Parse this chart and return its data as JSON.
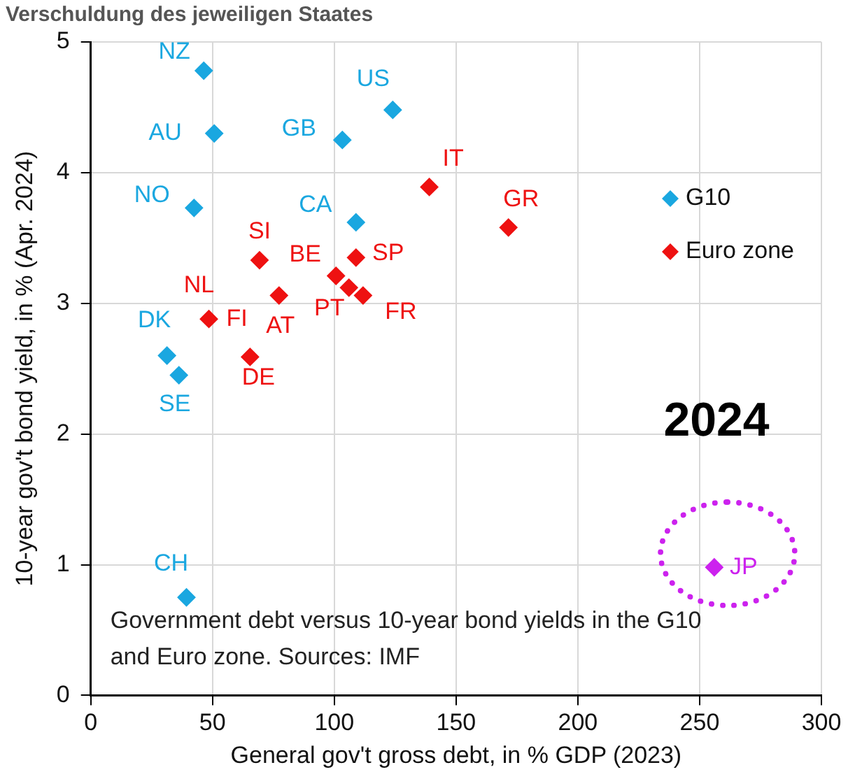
{
  "chart_data": {
    "type": "scatter",
    "title": "Verschuldung des jeweiligen Staates",
    "xlabel": "General gov't gross debt, in % GDP (2023)",
    "ylabel": "10-year gov't bond yield, in % (Apr. 2024)",
    "xlim": [
      0,
      300
    ],
    "xticks": [
      0,
      50,
      100,
      150,
      200,
      250,
      300
    ],
    "ylim": [
      0,
      5
    ],
    "yticks": [
      0,
      1,
      2,
      3,
      4,
      5
    ],
    "grid": true,
    "legend": "top right",
    "marker": "diamond",
    "series": [
      {
        "name": "G10",
        "color": "#1aa7e0",
        "x": [
          46.4,
          50.7,
          124,
          103.3,
          42.4,
          108.9,
          39.3,
          31.3,
          36.2
        ],
        "values": [
          4.78,
          4.3,
          4.48,
          4.25,
          3.73,
          3.62,
          0.75,
          2.6,
          2.45
        ]
      },
      {
        "name": "Euro zone",
        "color": "#ee1111",
        "x": [
          139,
          171.5,
          69.3,
          100.7,
          108.9,
          106,
          111.8,
          77.3,
          null,
          48.5,
          65.4
        ],
        "values": [
          3.89,
          3.58,
          3.33,
          3.21,
          3.35,
          3.12,
          3.06,
          3.06,
          null,
          2.88,
          2.59
        ]
      },
      {
        "color": "#cc22ee",
        "x": [
          256
        ],
        "values": [
          0.98
        ]
      }
    ],
    "annotations": [
      {
        "text": "NZ",
        "x": 46.4,
        "y": 4.78
      },
      {
        "text": "AU",
        "x": 50.7,
        "y": 4.3
      },
      {
        "text": "US",
        "x": 124,
        "y": 4.48
      },
      {
        "text": "GB",
        "x": 103.3,
        "y": 4.25
      },
      {
        "text": "NO",
        "x": 42.4,
        "y": 3.73
      },
      {
        "text": "CA",
        "x": 108.9,
        "y": 3.62
      },
      {
        "text": "CH",
        "x": 39.3,
        "y": 0.75
      },
      {
        "text": "DK",
        "x": 31.3,
        "y": 2.6
      },
      {
        "text": "SE",
        "x": 36.2,
        "y": 2.45
      },
      {
        "text": "JP",
        "x": 256,
        "y": 0.98
      },
      {
        "text": "IT",
        "x": 139,
        "y": 3.89
      },
      {
        "text": "GR",
        "x": 171.5,
        "y": 3.58
      },
      {
        "text": "SI",
        "x": 69.3,
        "y": 3.33
      },
      {
        "text": "BE",
        "x": 100.7,
        "y": 3.21
      },
      {
        "text": "SP",
        "x": 108.9,
        "y": 3.35
      },
      {
        "text": "PT",
        "x": 106,
        "y": 3.12
      },
      {
        "text": "FR",
        "x": 111.8,
        "y": 3.06
      },
      {
        "text": "AT",
        "x": 77.3,
        "y": 3.06
      },
      {
        "text": "NL",
        "x": 48.5,
        "y": 2.88
      },
      {
        "text": "FI",
        "x": 48.5,
        "y": 2.88
      },
      {
        "text": "DE",
        "x": 65.4,
        "y": 2.59
      },
      "2024",
      "Government debt versus 10-year bond yields in the G10 and Euro zone. Sources: IMF"
    ]
  }
}
